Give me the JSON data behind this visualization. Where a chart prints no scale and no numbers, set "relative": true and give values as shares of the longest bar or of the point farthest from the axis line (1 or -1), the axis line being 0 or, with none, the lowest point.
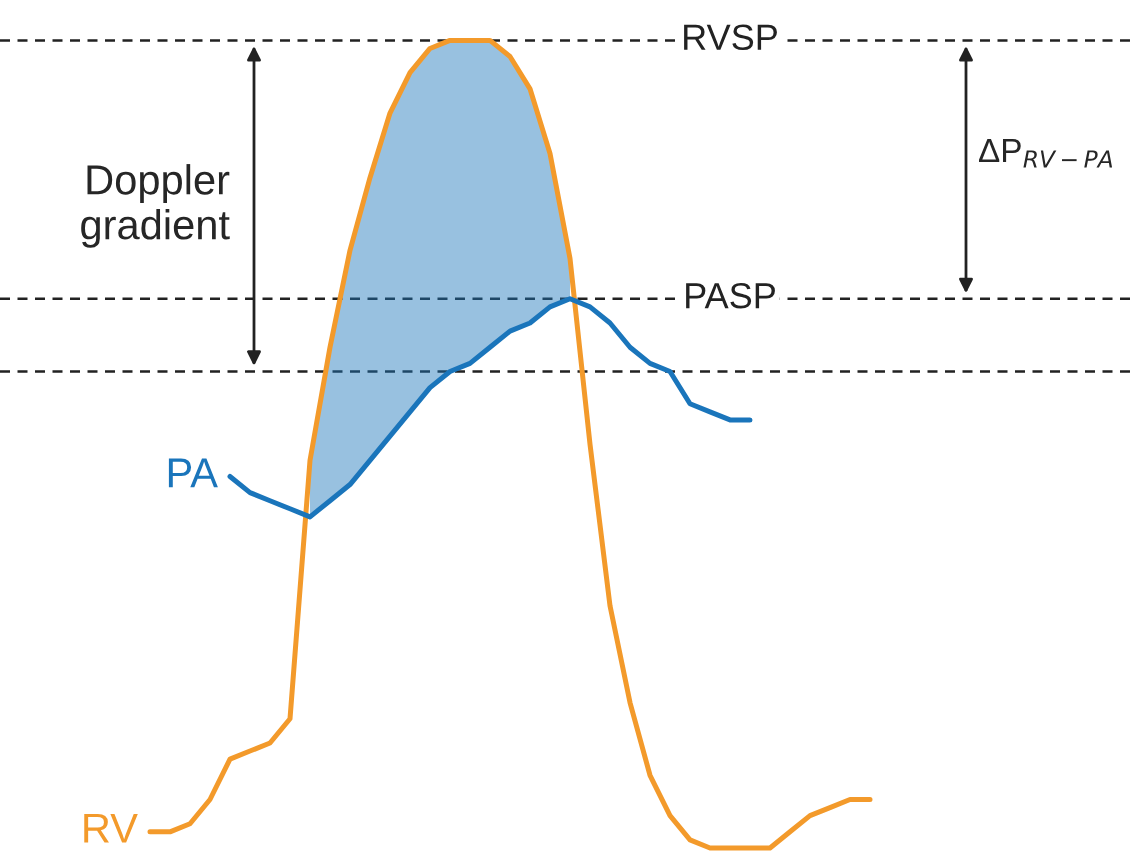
{
  "chart_data": {
    "type": "line",
    "relative": true,
    "grid": false,
    "categories": [
      null,
      null,
      null,
      null,
      null,
      null,
      null,
      null,
      null,
      null,
      null,
      null,
      null,
      null,
      null,
      null,
      null,
      null,
      null,
      null,
      null,
      null,
      null,
      null,
      null,
      null,
      null,
      null,
      null,
      null,
      null,
      null,
      null,
      null,
      null,
      null,
      null
    ],
    "series": [
      {
        "name": "RV",
        "color": "#f39a2b",
        "values": [
          0.02,
          0.02,
          0.03,
          0.06,
          0.11,
          0.12,
          0.13,
          0.16,
          0.48,
          0.62,
          0.74,
          0.83,
          0.91,
          0.96,
          0.99,
          1.0,
          1.0,
          1.0,
          0.98,
          0.94,
          0.86,
          0.73,
          0.5,
          0.3,
          0.18,
          0.09,
          0.04,
          0.01,
          0.0,
          0.0,
          0.0,
          0.0,
          0.02,
          0.04,
          0.05,
          0.06,
          0.06
        ]
      },
      {
        "name": "PA",
        "color": "#1a75bb",
        "values": [
          null,
          null,
          null,
          null,
          0.46,
          0.44,
          0.43,
          0.42,
          0.41,
          0.43,
          0.45,
          0.48,
          0.51,
          0.54,
          0.57,
          0.59,
          0.6,
          0.62,
          0.64,
          0.65,
          0.67,
          0.68,
          0.67,
          0.65,
          0.62,
          0.6,
          0.59,
          0.55,
          0.54,
          0.53,
          0.53,
          null,
          null,
          null,
          null,
          null,
          null
        ],
        "lower": [
          null,
          null,
          null,
          null,
          null,
          null,
          null,
          null,
          0.41,
          0.43,
          0.45,
          0.48,
          0.51,
          0.54,
          0.57,
          0.59,
          0.6,
          0.62,
          0.64,
          0.65,
          0.67,
          0.68,
          null,
          null,
          null,
          null,
          null,
          null,
          null,
          null,
          null,
          null,
          null,
          null,
          null,
          null,
          null
        ],
        "upper": [
          null,
          null,
          null,
          null,
          null,
          null,
          null,
          null,
          0.48,
          0.62,
          0.74,
          0.83,
          0.91,
          0.96,
          0.99,
          1.0,
          1.0,
          1.0,
          0.98,
          0.94,
          0.86,
          0.73,
          null,
          null,
          null,
          null,
          null,
          null,
          null,
          null,
          null,
          null,
          null,
          null,
          null,
          null,
          null
        ]
      }
    ],
    "ref_lines": [
      {
        "axis": "y",
        "value": 1.0,
        "label": "RVSP",
        "line_style": "dashed",
        "color": "#222222"
      },
      {
        "axis": "y",
        "value": 0.68,
        "label": "PASP",
        "line_style": "dashed",
        "color": "#222222"
      },
      {
        "axis": "y",
        "value": 0.59,
        "label": null,
        "line_style": "dashed",
        "color": "#222222"
      }
    ],
    "annotations": [
      "Doppler\ngradient",
      "ΔP$_{RV−PA}$"
    ]
  }
}
